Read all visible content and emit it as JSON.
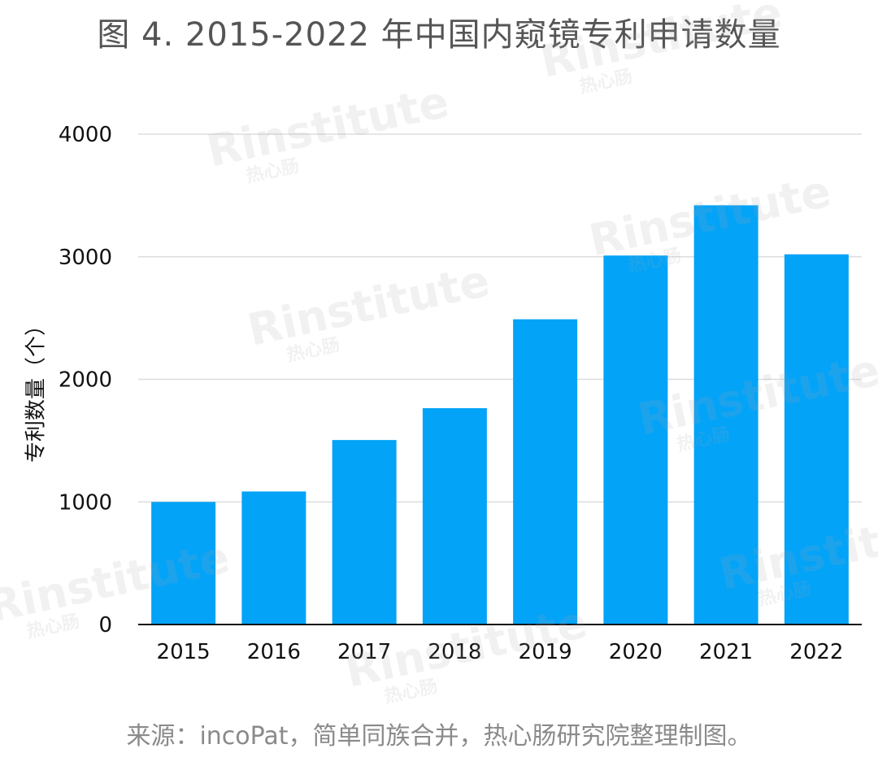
{
  "title": "图 4. 2015-2022 年中国内窥镜专利申请数量",
  "source_note": "来源：incoPat，简单同族合并，热心肠研究院整理制图。",
  "watermark": {
    "main": "Rinstitute",
    "sub": "热心肠"
  },
  "colors": {
    "bar": "#03A3F8",
    "grid": "#dddddd",
    "axis": "#111111",
    "title": "#555555",
    "source": "#8a8a8a"
  },
  "chart_data": {
    "type": "bar",
    "title": "图 4. 2015-2022 年中国内窥镜专利申请数量",
    "xlabel": "",
    "ylabel": "专利数量（个）",
    "categories": [
      "2015",
      "2016",
      "2017",
      "2018",
      "2019",
      "2020",
      "2021",
      "2022"
    ],
    "values": [
      1000,
      1085,
      1505,
      1765,
      2490,
      3010,
      3420,
      3020
    ],
    "ylim": [
      0,
      4000
    ],
    "yticks": [
      0,
      1000,
      2000,
      3000,
      4000
    ],
    "grid": true,
    "legend": "none"
  }
}
